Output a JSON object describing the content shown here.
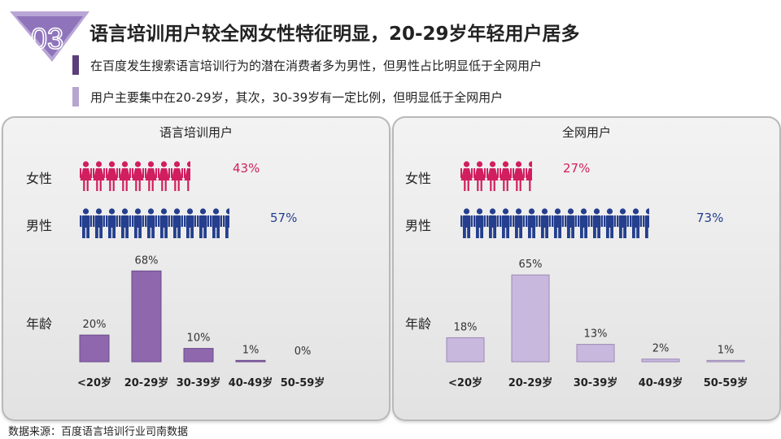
{
  "header": {
    "badge_number": "03",
    "title": "语言培训用户较全网女性特征明显，20-29岁年轻用户居多",
    "bullets": [
      {
        "text": "在百度发生搜索语言培训行为的潜在消费者多为男性，但男性占比明显低于全网用户",
        "color": "#5b3f7a"
      },
      {
        "text": "用户主要集中在20-29岁，其次，30-39岁有一定比例，但明显低于全网用户",
        "color": "#b7a5cf"
      }
    ]
  },
  "labels": {
    "female": "女性",
    "male": "男性",
    "age": "年龄"
  },
  "colors": {
    "female": "#d11e5e",
    "male": "#253f8e",
    "bar_dark": "#8e67ad",
    "bar_light": "#c8b8de"
  },
  "icons": {
    "female": "woman-icon",
    "male": "man-icon"
  },
  "panels": [
    {
      "title": "语言培训用户",
      "female_pct": "43%",
      "male_pct": "57%",
      "female_share": 0.43,
      "male_share": 0.57
    },
    {
      "title": "全网用户",
      "female_pct": "27%",
      "male_pct": "73%",
      "female_share": 0.27,
      "male_share": 0.73
    }
  ],
  "chart_data": [
    {
      "type": "bar",
      "title": "语言培训用户",
      "categories": [
        "<20岁",
        "20-29岁",
        "30-39岁",
        "40-49岁",
        "50-59岁"
      ],
      "values": [
        20,
        68,
        10,
        1,
        0
      ],
      "data_labels": [
        "20%",
        "68%",
        "10%",
        "1%",
        "0%"
      ],
      "ylim": [
        0,
        70
      ],
      "grid": false
    },
    {
      "type": "bar",
      "title": "全网用户",
      "categories": [
        "<20岁",
        "20-29岁",
        "30-39岁",
        "40-49岁",
        "50-59岁"
      ],
      "values": [
        18,
        65,
        13,
        2,
        1
      ],
      "data_labels": [
        "18%",
        "65%",
        "13%",
        "2%",
        "1%"
      ],
      "ylim": [
        0,
        70
      ],
      "grid": false
    }
  ],
  "footer": {
    "source": "数据来源：百度语言培训行业司南数据"
  }
}
